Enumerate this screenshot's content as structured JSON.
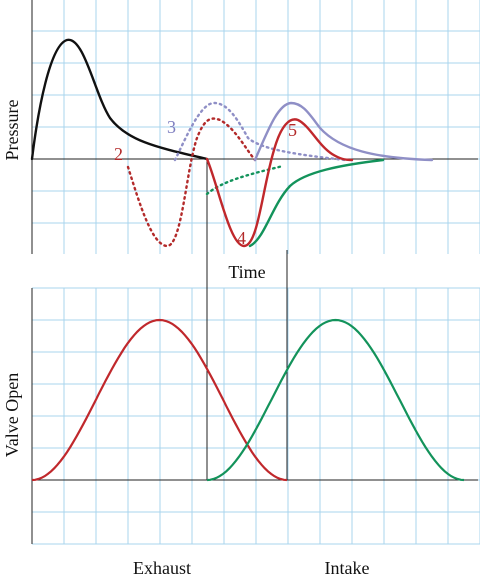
{
  "labels": {
    "top_ylabel": "Pressure",
    "top_xlabel": "Time",
    "bottom_ylabel": "Valve Open",
    "bottom_xlabel_left": "Exhaust",
    "bottom_xlabel_right": "Intake",
    "marker_2": "2",
    "marker_3": "3",
    "marker_4": "4",
    "marker_5": "5"
  },
  "colors": {
    "grid": "#a9d4ee",
    "axis": "#222222",
    "black_curve": "#111111",
    "red": "#c0282c",
    "green": "#13935b",
    "violet": "#8f8fc6",
    "marker_red": "#b32a2a",
    "marker_violet": "#7f7fc0"
  }
}
